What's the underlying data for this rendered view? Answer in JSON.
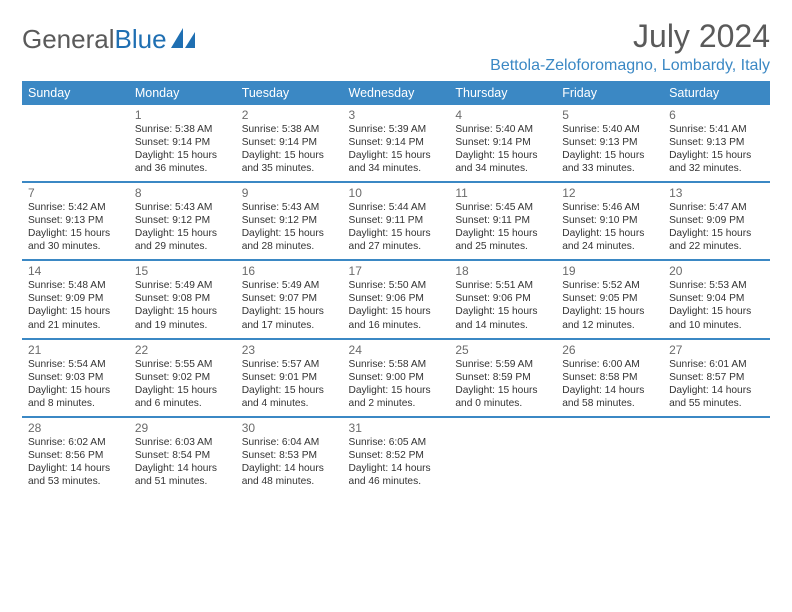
{
  "brand": {
    "general": "General",
    "blue": "Blue"
  },
  "title": {
    "month": "July 2024",
    "location": "Bettola-Zeloforomagno, Lombardy, Italy"
  },
  "day_headers": [
    "Sunday",
    "Monday",
    "Tuesday",
    "Wednesday",
    "Thursday",
    "Friday",
    "Saturday"
  ],
  "colors": {
    "accent": "#3b88c4",
    "text_muted": "#5a5a5a",
    "body_text": "#333333"
  },
  "weeks": [
    {
      "nums": [
        "",
        "1",
        "2",
        "3",
        "4",
        "5",
        "6"
      ],
      "cells": [
        "",
        "Sunrise: 5:38 AM\nSunset: 9:14 PM\nDaylight: 15 hours and 36 minutes.",
        "Sunrise: 5:38 AM\nSunset: 9:14 PM\nDaylight: 15 hours and 35 minutes.",
        "Sunrise: 5:39 AM\nSunset: 9:14 PM\nDaylight: 15 hours and 34 minutes.",
        "Sunrise: 5:40 AM\nSunset: 9:14 PM\nDaylight: 15 hours and 34 minutes.",
        "Sunrise: 5:40 AM\nSunset: 9:13 PM\nDaylight: 15 hours and 33 minutes.",
        "Sunrise: 5:41 AM\nSunset: 9:13 PM\nDaylight: 15 hours and 32 minutes."
      ]
    },
    {
      "nums": [
        "7",
        "8",
        "9",
        "10",
        "11",
        "12",
        "13"
      ],
      "cells": [
        "Sunrise: 5:42 AM\nSunset: 9:13 PM\nDaylight: 15 hours and 30 minutes.",
        "Sunrise: 5:43 AM\nSunset: 9:12 PM\nDaylight: 15 hours and 29 minutes.",
        "Sunrise: 5:43 AM\nSunset: 9:12 PM\nDaylight: 15 hours and 28 minutes.",
        "Sunrise: 5:44 AM\nSunset: 9:11 PM\nDaylight: 15 hours and 27 minutes.",
        "Sunrise: 5:45 AM\nSunset: 9:11 PM\nDaylight: 15 hours and 25 minutes.",
        "Sunrise: 5:46 AM\nSunset: 9:10 PM\nDaylight: 15 hours and 24 minutes.",
        "Sunrise: 5:47 AM\nSunset: 9:09 PM\nDaylight: 15 hours and 22 minutes."
      ]
    },
    {
      "nums": [
        "14",
        "15",
        "16",
        "17",
        "18",
        "19",
        "20"
      ],
      "cells": [
        "Sunrise: 5:48 AM\nSunset: 9:09 PM\nDaylight: 15 hours and 21 minutes.",
        "Sunrise: 5:49 AM\nSunset: 9:08 PM\nDaylight: 15 hours and 19 minutes.",
        "Sunrise: 5:49 AM\nSunset: 9:07 PM\nDaylight: 15 hours and 17 minutes.",
        "Sunrise: 5:50 AM\nSunset: 9:06 PM\nDaylight: 15 hours and 16 minutes.",
        "Sunrise: 5:51 AM\nSunset: 9:06 PM\nDaylight: 15 hours and 14 minutes.",
        "Sunrise: 5:52 AM\nSunset: 9:05 PM\nDaylight: 15 hours and 12 minutes.",
        "Sunrise: 5:53 AM\nSunset: 9:04 PM\nDaylight: 15 hours and 10 minutes."
      ]
    },
    {
      "nums": [
        "21",
        "22",
        "23",
        "24",
        "25",
        "26",
        "27"
      ],
      "cells": [
        "Sunrise: 5:54 AM\nSunset: 9:03 PM\nDaylight: 15 hours and 8 minutes.",
        "Sunrise: 5:55 AM\nSunset: 9:02 PM\nDaylight: 15 hours and 6 minutes.",
        "Sunrise: 5:57 AM\nSunset: 9:01 PM\nDaylight: 15 hours and 4 minutes.",
        "Sunrise: 5:58 AM\nSunset: 9:00 PM\nDaylight: 15 hours and 2 minutes.",
        "Sunrise: 5:59 AM\nSunset: 8:59 PM\nDaylight: 15 hours and 0 minutes.",
        "Sunrise: 6:00 AM\nSunset: 8:58 PM\nDaylight: 14 hours and 58 minutes.",
        "Sunrise: 6:01 AM\nSunset: 8:57 PM\nDaylight: 14 hours and 55 minutes."
      ]
    },
    {
      "nums": [
        "28",
        "29",
        "30",
        "31",
        "",
        "",
        ""
      ],
      "cells": [
        "Sunrise: 6:02 AM\nSunset: 8:56 PM\nDaylight: 14 hours and 53 minutes.",
        "Sunrise: 6:03 AM\nSunset: 8:54 PM\nDaylight: 14 hours and 51 minutes.",
        "Sunrise: 6:04 AM\nSunset: 8:53 PM\nDaylight: 14 hours and 48 minutes.",
        "Sunrise: 6:05 AM\nSunset: 8:52 PM\nDaylight: 14 hours and 46 minutes.",
        "",
        "",
        ""
      ]
    }
  ]
}
